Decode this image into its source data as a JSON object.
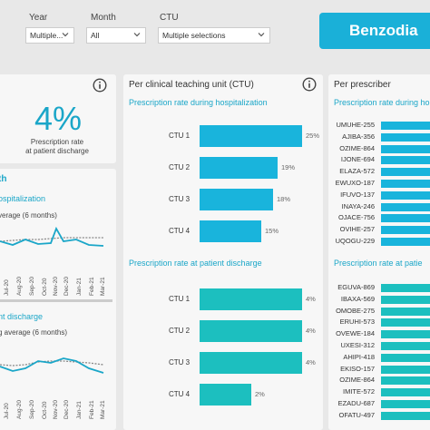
{
  "filters": {
    "year": {
      "label": "Year",
      "value": "Multiple..."
    },
    "month": {
      "label": "Month",
      "value": "All"
    },
    "ctu": {
      "label": "CTU",
      "value": "Multiple selections"
    }
  },
  "banner": {
    "title": "Benzodia"
  },
  "left": {
    "kpi_value": "4%",
    "kpi_caption_1": "Prescription rate",
    "kpi_caption_2": "at patient discharge",
    "trend_title": "th",
    "hosp_title": "ospitalization",
    "hosp_avg": "verage (6 months)",
    "disc_title": "nt discharge",
    "disc_avg": "g average (6 months)",
    "xticks": [
      "Jul-20",
      "Aug-20",
      "Sep-20",
      "Oct-20",
      "Nov-20",
      "Dec-20",
      "Jan-21",
      "Feb-21",
      "Mar-21"
    ]
  },
  "ctu_panel": {
    "title": "Per clinical teaching unit (CTU)",
    "hosp_subtitle": "Prescription rate during hospitalization",
    "disc_subtitle": "Prescription rate at patient discharge",
    "hosp_rows": [
      {
        "label": "CTU 1",
        "value_label": "25%",
        "value": 25
      },
      {
        "label": "CTU 2",
        "value_label": "19%",
        "value": 19
      },
      {
        "label": "CTU 3",
        "value_label": "18%",
        "value": 18
      },
      {
        "label": "CTU 4",
        "value_label": "15%",
        "value": 15
      }
    ],
    "disc_rows": [
      {
        "label": "CTU 1",
        "value_label": "4%",
        "value": 4
      },
      {
        "label": "CTU 2",
        "value_label": "4%",
        "value": 4
      },
      {
        "label": "CTU 3",
        "value_label": "4%",
        "value": 4
      },
      {
        "label": "CTU 4",
        "value_label": "2%",
        "value": 2
      }
    ]
  },
  "prescriber_panel": {
    "title": "Per prescriber",
    "hosp_subtitle": "Prescription rate during ho",
    "disc_subtitle": "Prescription rate at patie",
    "hosp_names": [
      "UMUHE-255",
      "AJIBA-356",
      "OZIME-864",
      "IJONE-694",
      "ELAZA-572",
      "EWUXO-187",
      "IFUVO-137",
      "INAYA-246",
      "OJACE-756",
      "OVIHE-257",
      "UQOGU-229"
    ],
    "disc_names": [
      "EGUVA-869",
      "IBAXA-569",
      "OMOBE-275",
      "ERUHI-573",
      "OVEWE-184",
      "UXESI-312",
      "AHIPI-418",
      "EKISO-157",
      "OZIME-864",
      "IMITE-572",
      "EZADU-687",
      "OFATU-497"
    ]
  },
  "colors": {
    "hosp_bar": "#19b4dc",
    "disc_bar": "#1cbfbf",
    "accent": "#1aa6c8"
  }
}
